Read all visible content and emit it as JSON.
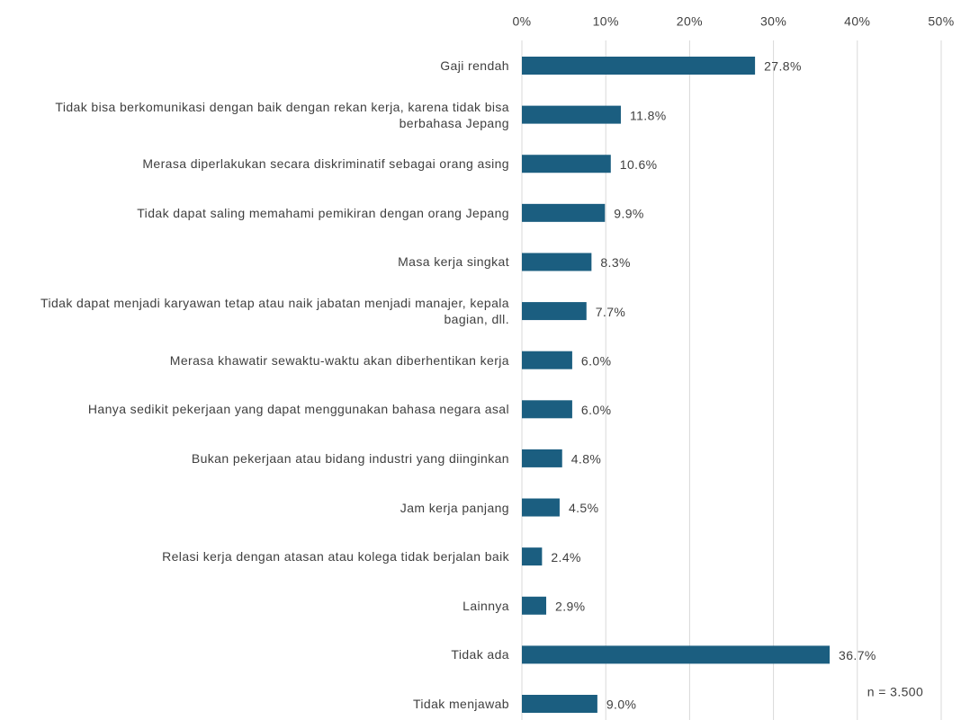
{
  "chart_data": {
    "type": "bar",
    "orientation": "horizontal",
    "categories": [
      "Gaji rendah",
      "Tidak bisa berkomunikasi dengan baik dengan rekan kerja, karena tidak bisa berbahasa Jepang",
      "Merasa diperlakukan secara diskriminatif sebagai orang asing",
      "Tidak dapat saling memahami pemikiran dengan orang Jepang",
      "Masa kerja singkat",
      "Tidak dapat menjadi karyawan tetap atau naik jabatan menjadi manajer, kepala bagian, dll.",
      "Merasa khawatir sewaktu-waktu akan diberhentikan kerja",
      "Hanya sedikit pekerjaan yang dapat menggunakan bahasa negara asal",
      "Bukan pekerjaan atau bidang industri yang diinginkan",
      "Jam kerja panjang",
      "Relasi kerja dengan atasan atau kolega tidak berjalan baik",
      "Lainnya",
      "Tidak ada",
      "Tidak menjawab"
    ],
    "values": [
      27.8,
      11.8,
      10.6,
      9.9,
      8.3,
      7.7,
      6.0,
      6.0,
      4.8,
      4.5,
      2.4,
      2.9,
      36.7,
      9.0
    ],
    "value_labels": [
      "27.8%",
      "11.8%",
      "10.6%",
      "9.9%",
      "8.3%",
      "7.7%",
      "6.0%",
      "6.0%",
      "4.8%",
      "4.5%",
      "2.4%",
      "2.9%",
      "36.7%",
      "9.0%"
    ],
    "color": "#1b5e80",
    "xlim": [
      0,
      50
    ],
    "xticks": [
      {
        "value": 0,
        "label": "0%"
      },
      {
        "value": 10,
        "label": "10%"
      },
      {
        "value": 20,
        "label": "20%"
      },
      {
        "value": 30,
        "label": "30%"
      },
      {
        "value": 40,
        "label": "40%"
      },
      {
        "value": 50,
        "label": "50%"
      }
    ],
    "grid": true,
    "annotation": "n = 3.500"
  }
}
